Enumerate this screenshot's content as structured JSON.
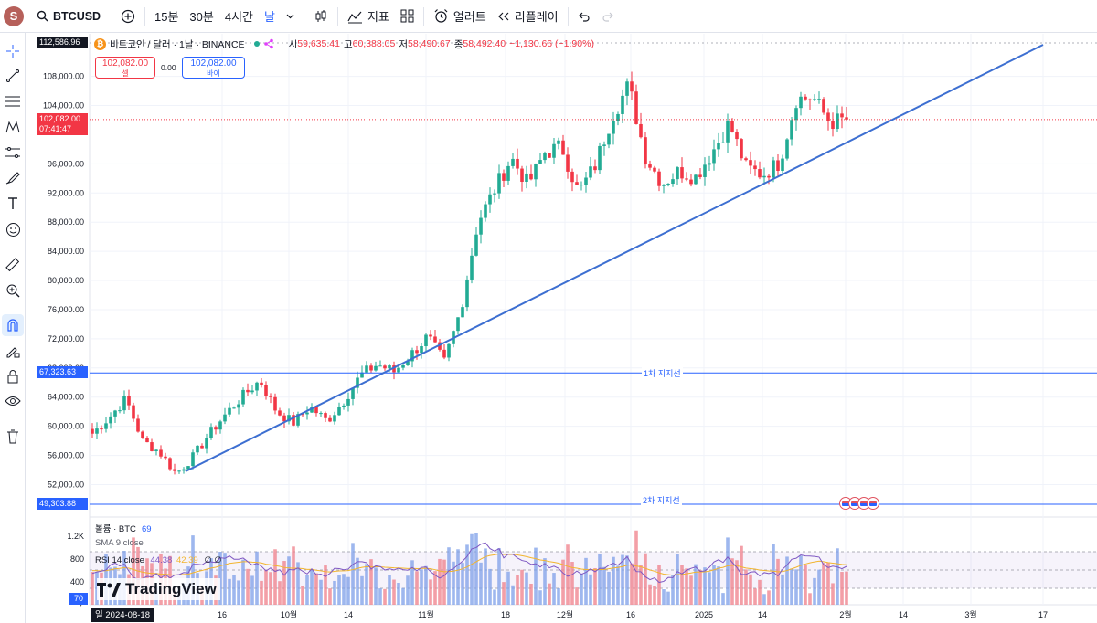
{
  "toolbar": {
    "avatar_letter": "S",
    "symbol": "BTCUSD",
    "timeframes": [
      "15분",
      "30분",
      "4시간",
      "날"
    ],
    "indicators_label": "지표",
    "alert_label": "얼러트",
    "replay_label": "리플레이"
  },
  "legend": {
    "coin_glyph": "₿",
    "title": "비트코인 / 달러 · 1날 · BINANCE",
    "open_label": "시",
    "open": "59,635.41",
    "high_label": "고",
    "high": "60,388.05",
    "low_label": "저",
    "low": "58,490.67",
    "close_label": "종",
    "close": "58,492.40",
    "change": "−1,130.66 (−1.90%)"
  },
  "trade": {
    "sell_price": "102,082.00",
    "sell_label": "셀",
    "spread": "0.00",
    "buy_price": "102,082.00",
    "buy_label": "바이"
  },
  "price_axis": {
    "labels": [
      "108,000.00",
      "104,000.00",
      "96,000.00",
      "92,000.00",
      "88,000.00",
      "84,000.00",
      "80,000.00",
      "76,000.00",
      "72,000.00",
      "68,000.00",
      "64,000.00",
      "60,000.00",
      "56,000.00",
      "52,000.00"
    ],
    "top_tag": "112,586.96",
    "current_price": "102,082.00",
    "countdown": "07:41:47",
    "support1_tag": "67,323.63",
    "support2_tag": "49,303.88"
  },
  "lines": {
    "support1_label": "1차 지지선",
    "support2_label": "2차 지지선",
    "trend_color": "#3d6fd1",
    "support_color": "#2962ff"
  },
  "indicators": {
    "volume_label": "볼륨 · BTC",
    "volume_value": "69",
    "sma_label": "SMA 9 close",
    "rsi_label": "RSI 14 close",
    "rsi_value": "44.38",
    "rsi_ma_value": "42.39",
    "rsi_extra": "∅ ∅",
    "rsi_tag": "70",
    "axis_labels": [
      "1.2K",
      "800",
      "400",
      "Z"
    ]
  },
  "time_axis": {
    "labels": [
      "16",
      "10월",
      "14",
      "11월",
      "18",
      "12월",
      "16",
      "2025",
      "14",
      "2월",
      "14",
      "3월",
      "17"
    ],
    "cursor_date": "일 2024-08-18"
  },
  "branding": {
    "name": "TradingView"
  },
  "chart_data": {
    "type": "candlestick",
    "symbol": "BTCUSD",
    "interval": "1D",
    "x_range": [
      "2024-08-18",
      "2025-01-31"
    ],
    "ylim": [
      49303.88,
      112586.96
    ],
    "approx_closes": [
      59000,
      61200,
      63800,
      58000,
      56500,
      53500,
      55800,
      59000,
      61800,
      64200,
      66300,
      62000,
      60500,
      62700,
      60700,
      63500,
      67000,
      68500,
      67500,
      69800,
      72300,
      68800,
      76200,
      88000,
      92500,
      96800,
      93200,
      97500,
      98400,
      92000,
      95800,
      102500,
      106800,
      97000,
      93300,
      95000,
      94200,
      97700,
      101600,
      95500,
      94500,
      96200,
      104900,
      105100,
      101700,
      102082
    ],
    "support_levels": [
      67323.63,
      49303.88
    ],
    "trendline": {
      "from": {
        "date": "2024-09-06",
        "price": 53400
      },
      "to": {
        "date": "2025-03-17",
        "price": 110900
      }
    },
    "volume_max": 1200,
    "rsi_last": 44.38,
    "rsi_ma_last": 42.39
  }
}
